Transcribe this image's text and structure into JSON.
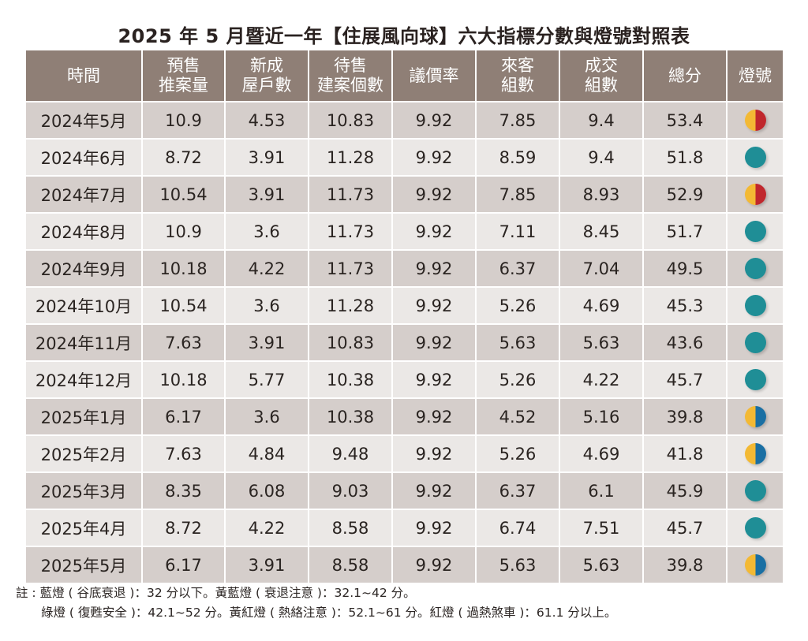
{
  "title": "2025 年 5 月暨近一年【住展風向球】六大指標分數與燈號對照表",
  "table": {
    "headers": [
      "時間",
      "預售\n推案量",
      "新成\n屋戶數",
      "待售\n建案個數",
      "議價率",
      "來客\n組數",
      "成交\n組數",
      "總分",
      "燈號"
    ],
    "header_lines": [
      [
        "時間"
      ],
      [
        "預售",
        "推案量"
      ],
      [
        "新成",
        "屋戶數"
      ],
      [
        "待售",
        "建案個數"
      ],
      [
        "議價率"
      ],
      [
        "來客",
        "組數"
      ],
      [
        "成交",
        "組數"
      ],
      [
        "總分"
      ],
      [
        "燈號"
      ]
    ],
    "rows": [
      {
        "period": "2024年5月",
        "presale": "10.9",
        "new_homes": "4.53",
        "for_sale": "10.83",
        "bargain": "9.92",
        "visitors": "7.85",
        "deals": "9.4",
        "total": "53.4",
        "lamp": "yellow-red",
        "lamp_label": "黃紅燈"
      },
      {
        "period": "2024年6月",
        "presale": "8.72",
        "new_homes": "3.91",
        "for_sale": "11.28",
        "bargain": "9.92",
        "visitors": "8.59",
        "deals": "9.4",
        "total": "51.8",
        "lamp": "green",
        "lamp_label": "綠燈"
      },
      {
        "period": "2024年7月",
        "presale": "10.54",
        "new_homes": "3.91",
        "for_sale": "11.73",
        "bargain": "9.92",
        "visitors": "7.85",
        "deals": "8.93",
        "total": "52.9",
        "lamp": "yellow-red",
        "lamp_label": "黃紅燈"
      },
      {
        "period": "2024年8月",
        "presale": "10.9",
        "new_homes": "3.6",
        "for_sale": "11.73",
        "bargain": "9.92",
        "visitors": "7.11",
        "deals": "8.45",
        "total": "51.7",
        "lamp": "green",
        "lamp_label": "綠燈"
      },
      {
        "period": "2024年9月",
        "presale": "10.18",
        "new_homes": "4.22",
        "for_sale": "11.73",
        "bargain": "9.92",
        "visitors": "6.37",
        "deals": "7.04",
        "total": "49.5",
        "lamp": "green",
        "lamp_label": "綠燈"
      },
      {
        "period": "2024年10月",
        "presale": "10.54",
        "new_homes": "3.6",
        "for_sale": "11.28",
        "bargain": "9.92",
        "visitors": "5.26",
        "deals": "4.69",
        "total": "45.3",
        "lamp": "green",
        "lamp_label": "綠燈"
      },
      {
        "period": "2024年11月",
        "presale": "7.63",
        "new_homes": "3.91",
        "for_sale": "10.83",
        "bargain": "9.92",
        "visitors": "5.63",
        "deals": "5.63",
        "total": "43.6",
        "lamp": "green",
        "lamp_label": "綠燈"
      },
      {
        "period": "2024年12月",
        "presale": "10.18",
        "new_homes": "5.77",
        "for_sale": "10.38",
        "bargain": "9.92",
        "visitors": "5.26",
        "deals": "4.22",
        "total": "45.7",
        "lamp": "green",
        "lamp_label": "綠燈"
      },
      {
        "period": "2025年1月",
        "presale": "6.17",
        "new_homes": "3.6",
        "for_sale": "10.38",
        "bargain": "9.92",
        "visitors": "4.52",
        "deals": "5.16",
        "total": "39.8",
        "lamp": "yellow-blue",
        "lamp_label": "黃藍燈"
      },
      {
        "period": "2025年2月",
        "presale": "7.63",
        "new_homes": "4.84",
        "for_sale": "9.48",
        "bargain": "9.92",
        "visitors": "5.26",
        "deals": "4.69",
        "total": "41.8",
        "lamp": "yellow-blue",
        "lamp_label": "黃藍燈"
      },
      {
        "period": "2025年3月",
        "presale": "8.35",
        "new_homes": "6.08",
        "for_sale": "9.03",
        "bargain": "9.92",
        "visitors": "6.37",
        "deals": "6.1",
        "total": "45.9",
        "lamp": "green",
        "lamp_label": "綠燈"
      },
      {
        "period": "2025年4月",
        "presale": "8.72",
        "new_homes": "4.22",
        "for_sale": "8.58",
        "bargain": "9.92",
        "visitors": "6.74",
        "deals": "7.51",
        "total": "45.7",
        "lamp": "green",
        "lamp_label": "綠燈"
      },
      {
        "period": "2025年5月",
        "presale": "6.17",
        "new_homes": "3.91",
        "for_sale": "8.58",
        "bargain": "9.92",
        "visitors": "5.63",
        "deals": "5.63",
        "total": "39.8",
        "lamp": "yellow-blue",
        "lamp_label": "黃藍燈"
      }
    ]
  },
  "notes": {
    "line1": "註 : 藍燈 ( 谷底衰退 )：32 分以下。黃藍燈 ( 衰退注意 )：32.1~42 分。",
    "line2": "綠燈 ( 復甦安全 )：42.1~52 分。黃紅燈 ( 熱絡注意 )：52.1~61 分。紅燈 ( 過熱煞車 )：61.1 分以上。"
  },
  "colors": {
    "header_bg": "#8f7f76",
    "row_dark": "#d5cecb",
    "row_light": "#ebe8e6",
    "lamp_green": "#1f8e96",
    "lamp_yellow": "#f3b934",
    "lamp_red": "#c0272d",
    "lamp_blue": "#1a6fa3"
  }
}
